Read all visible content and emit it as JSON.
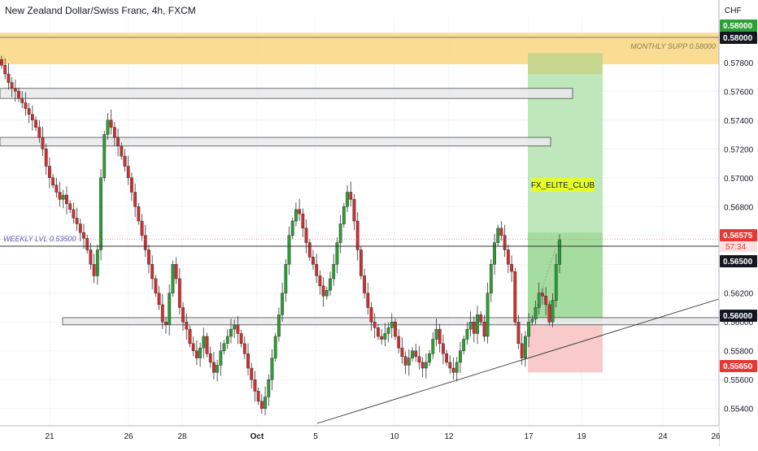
{
  "header": {
    "title": "New Zealand Dollar/Swiss Franc, 4h, FXCM",
    "currency": "CHF"
  },
  "colors": {
    "bull": "#26a69a",
    "bear": "#ef5350",
    "bull_candle": "#2e9e36",
    "bear_candle": "#d32f2f",
    "supply_zone": "#f9d680",
    "target_zone": "#b7e4b4",
    "stop_zone": "#f8c4c4",
    "label_box": "#e6ff2a"
  },
  "annotations": {
    "monthly_supp": "MONTHLY SUPP 0.58000",
    "weekly_lvl": "WEEKLY LVL 0.53500",
    "watermark": "FX_ELITE_CLUB",
    "countdown": "57:34"
  },
  "price_tags": [
    {
      "label": "0.58000",
      "price": 0.58,
      "style": "green"
    },
    {
      "label": "0.58000",
      "price": 0.57975,
      "style": "black"
    },
    {
      "label": "0.56575",
      "price": 0.56575,
      "style": "red"
    },
    {
      "label": "0.56500",
      "price": 0.5639,
      "style": "black"
    },
    {
      "label": "0.56000",
      "price": 0.56,
      "style": "black"
    },
    {
      "label": "0.55650",
      "price": 0.5565,
      "style": "red"
    }
  ],
  "chart_data": {
    "type": "candlestick",
    "symbol": "NZDCHF",
    "timeframe": "4h",
    "y_ticks": [
      "0.57800",
      "0.57600",
      "0.57400",
      "0.57200",
      "0.57000",
      "0.56800",
      "0.56600",
      "0.56400",
      "0.56200",
      "0.56000",
      "0.55800",
      "0.55600",
      "0.55400"
    ],
    "y_tick_values": [
      0.578,
      0.576,
      0.574,
      0.572,
      0.57,
      0.568,
      0.566,
      0.564,
      0.562,
      0.56,
      0.558,
      0.556,
      0.554
    ],
    "ylim": [
      0.5528,
      0.5812
    ],
    "x_ticks": [
      "21",
      "26",
      "28",
      "Oct",
      "5",
      "10",
      "12",
      "17",
      "19",
      "24",
      "26"
    ],
    "horizontal_levels": [
      {
        "name": "monthly-supply-zone",
        "from": 0.5785,
        "to": 0.58
      },
      {
        "name": "resistance-band-1",
        "from": 0.5755,
        "to": 0.5762
      },
      {
        "name": "resistance-band-2",
        "from": 0.5722,
        "to": 0.5728
      },
      {
        "name": "support-band",
        "from": 0.5598,
        "to": 0.5603
      }
    ],
    "trade_setup": {
      "entry": 0.56,
      "target": 0.58,
      "stop": 0.5565
    },
    "candles_close": [
      0.5778,
      0.5772,
      0.5766,
      0.5762,
      0.576,
      0.5755,
      0.5752,
      0.5748,
      0.5744,
      0.574,
      0.5735,
      0.5728,
      0.572,
      0.5708,
      0.57,
      0.5695,
      0.569,
      0.5685,
      0.5688,
      0.5682,
      0.5678,
      0.5672,
      0.5668,
      0.5662,
      0.5658,
      0.565,
      0.564,
      0.5632,
      0.565,
      0.57,
      0.573,
      0.574,
      0.5735,
      0.5728,
      0.5722,
      0.5715,
      0.5708,
      0.57,
      0.569,
      0.568,
      0.567,
      0.566,
      0.565,
      0.564,
      0.563,
      0.562,
      0.5612,
      0.56,
      0.5598,
      0.562,
      0.564,
      0.563,
      0.561,
      0.56,
      0.5595,
      0.5585,
      0.558,
      0.5575,
      0.5582,
      0.559,
      0.5578,
      0.5572,
      0.5565,
      0.557,
      0.558,
      0.5585,
      0.559,
      0.5595,
      0.5598,
      0.5592,
      0.5585,
      0.5578,
      0.5568,
      0.556,
      0.5552,
      0.5545,
      0.554,
      0.5548,
      0.556,
      0.5575,
      0.559,
      0.5605,
      0.562,
      0.564,
      0.566,
      0.567,
      0.5678,
      0.5675,
      0.5665,
      0.5655,
      0.5645,
      0.564,
      0.5632,
      0.5625,
      0.5618,
      0.5622,
      0.563,
      0.564,
      0.5655,
      0.5668,
      0.568,
      0.569,
      0.5685,
      0.567,
      0.565,
      0.5632,
      0.562,
      0.561,
      0.56,
      0.5596,
      0.559,
      0.5588,
      0.5592,
      0.5596,
      0.56,
      0.559,
      0.5582,
      0.5576,
      0.557,
      0.5575,
      0.558,
      0.5576,
      0.5572,
      0.5568,
      0.5572,
      0.5578,
      0.5588,
      0.5595,
      0.5585,
      0.5578,
      0.5572,
      0.5568,
      0.5565,
      0.5572,
      0.558,
      0.5588,
      0.5595,
      0.56,
      0.5592,
      0.5605,
      0.56,
      0.559,
      0.562,
      0.564,
      0.5655,
      0.5665,
      0.566,
      0.565,
      0.564,
      0.5635,
      0.56,
      0.5585,
      0.5575,
      0.559,
      0.56,
      0.5602,
      0.561,
      0.562,
      0.5618,
      0.5612,
      0.56,
      0.5615,
      0.564,
      0.5657
    ]
  }
}
